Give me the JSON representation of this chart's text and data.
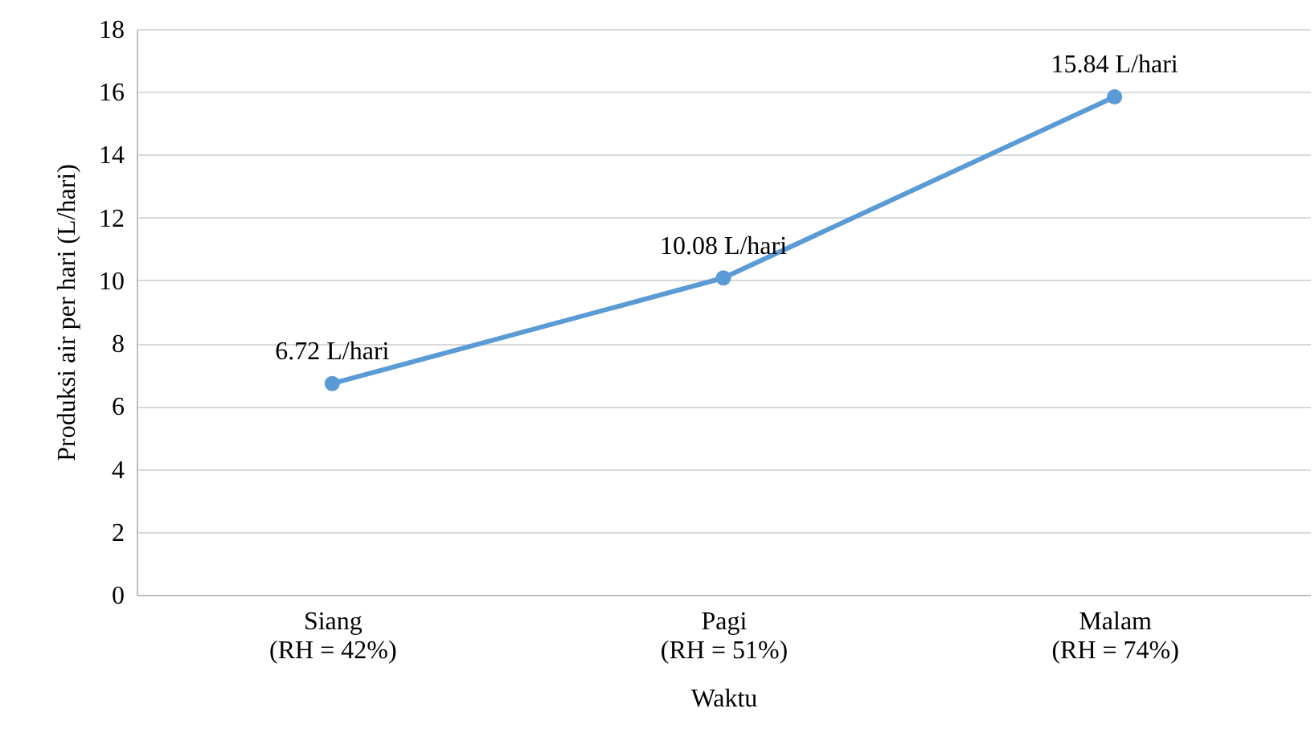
{
  "chart_data": {
    "type": "line",
    "xlabel": "Waktu",
    "ylabel": "Produksi air per hari (L/hari)",
    "categories": [
      "Siang\n(RH = 42%)",
      "Pagi\n(RH = 51%)",
      "Malam\n(RH = 74%)"
    ],
    "series": [
      {
        "color": "#5b9bd5",
        "values": [
          6.72,
          10.08,
          15.84
        ],
        "value_labels": [
          "6.72 L/hari",
          "10.08 L/hari",
          "15.84 L/hari"
        ]
      }
    ],
    "ylim": [
      0,
      18
    ],
    "yticks": [
      0,
      2,
      4,
      6,
      8,
      10,
      12,
      14,
      16,
      18
    ],
    "grid": "y",
    "marker": "circle",
    "line_style": "solid"
  }
}
